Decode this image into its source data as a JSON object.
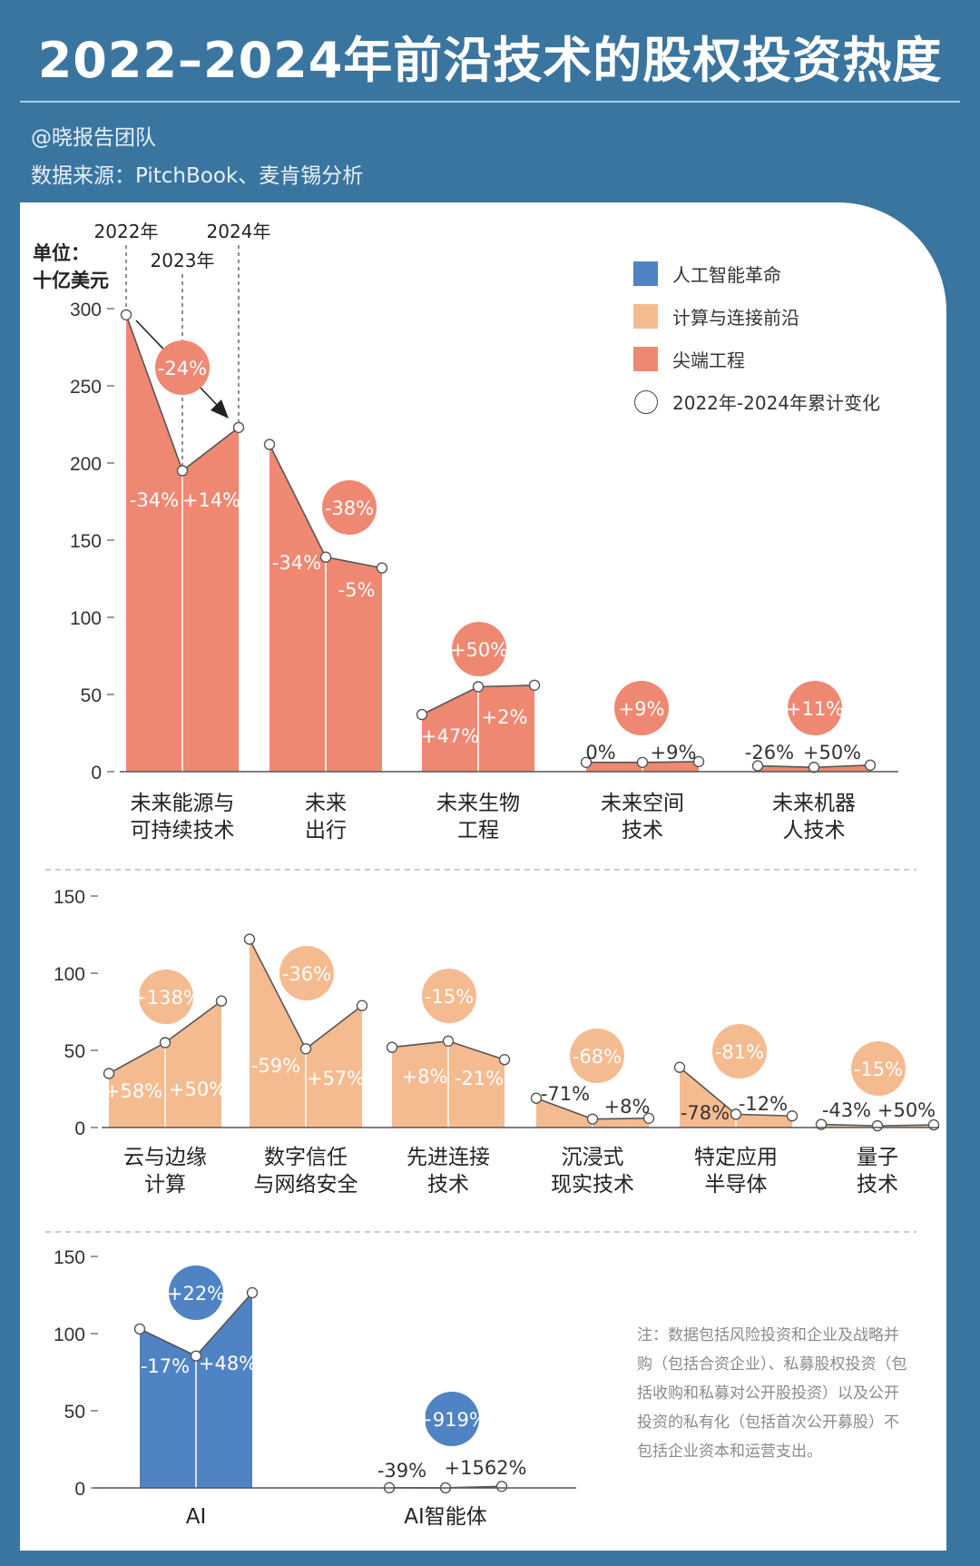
{
  "header": {
    "title": "2022–2024年前沿技术的股权投资热度",
    "author": "@晓报告团队",
    "source": "数据来源：PitchBook、麦肯锡分析"
  },
  "legend": {
    "items": [
      {
        "label": "人工智能革命",
        "color": "#4f83c4"
      },
      {
        "label": "计算与连接前沿",
        "color": "#f5bb90"
      },
      {
        "label": "尖端工程",
        "color": "#ef8872"
      }
    ],
    "marker_label": "2022年-2024年累计变化"
  },
  "note": "注：数据包括风险投资和企业及战略并购（包括合资企业）、私募股权投资（包括收购和私募对公开股投资）以及公开投资的私有化（包括首次公开募股）不包括企业资本和运营支出。",
  "colors": {
    "background": "#3a75a0",
    "line": "#555555"
  },
  "chart_data": [
    {
      "type": "area",
      "unit_label": [
        "单位：",
        "十亿美元"
      ],
      "years": [
        "2022年",
        "2023年",
        "2024年"
      ],
      "ylim": [
        0,
        300
      ],
      "yticks": [
        "0",
        "50",
        "100",
        "150",
        "200",
        "250",
        "300"
      ],
      "color": "#ef8872",
      "series_group": "尖端工程",
      "groups": [
        {
          "label": [
            "未来能源与",
            "可持续技术"
          ],
          "values": [
            296,
            195,
            223
          ],
          "changes": [
            "-34%",
            "+14%"
          ],
          "cumulative": "-24%"
        },
        {
          "label": [
            "未来",
            "出行"
          ],
          "values": [
            212,
            139,
            132
          ],
          "changes": [
            "-34%",
            "-5%"
          ],
          "cumulative": "-38%"
        },
        {
          "label": [
            "未来生物",
            "工程"
          ],
          "values": [
            37,
            55,
            56
          ],
          "changes": [
            "+47%",
            "+2%"
          ],
          "cumulative": "+50%"
        },
        {
          "label": [
            "未来空间",
            "技术"
          ],
          "values": [
            6,
            6,
            6.5
          ],
          "changes": [
            "0%",
            "+9%"
          ],
          "cumulative": "+9%"
        },
        {
          "label": [
            "未来机器",
            "人技术"
          ],
          "values": [
            3.8,
            2.8,
            4.2
          ],
          "changes": [
            "-26%",
            "+50%"
          ],
          "cumulative": "+11%"
        }
      ]
    },
    {
      "type": "area",
      "ylim": [
        0,
        150
      ],
      "yticks": [
        "0",
        "50",
        "100",
        "150"
      ],
      "color": "#f5bb90",
      "series_group": "计算与连接前沿",
      "groups": [
        {
          "label": [
            "云与边缘",
            "计算"
          ],
          "values": [
            35,
            55,
            82
          ],
          "changes": [
            "+58%",
            "+50%"
          ],
          "cumulative": "+138%"
        },
        {
          "label": [
            "数字信任",
            "与网络安全"
          ],
          "values": [
            122,
            51,
            79
          ],
          "changes": [
            "-59%",
            "+57%"
          ],
          "cumulative": "-36%"
        },
        {
          "label": [
            "先进连接",
            "技术"
          ],
          "values": [
            52,
            56,
            44
          ],
          "changes": [
            "+8%",
            "-21%"
          ],
          "cumulative": "-15%"
        },
        {
          "label": [
            "沉浸式",
            "现实技术"
          ],
          "values": [
            19,
            5.5,
            6
          ],
          "changes": [
            "-71%",
            "+8%"
          ],
          "cumulative": "-68%"
        },
        {
          "label": [
            "特定应用",
            "半导体"
          ],
          "values": [
            39,
            8.6,
            7.5
          ],
          "changes": [
            "-78%",
            "-12%"
          ],
          "cumulative": "-81%"
        },
        {
          "label": [
            "量子",
            "技术"
          ],
          "values": [
            2,
            1.1,
            1.7
          ],
          "changes": [
            "-43%",
            "+50%"
          ],
          "cumulative": "-15%"
        }
      ]
    },
    {
      "type": "area",
      "ylim": [
        0,
        150
      ],
      "yticks": [
        "0",
        "50",
        "100",
        "150"
      ],
      "color": "#4f83c4",
      "series_group": "人工智能革命",
      "groups": [
        {
          "label": [
            "AI"
          ],
          "values": [
            103,
            85.5,
            126.5
          ],
          "changes": [
            "-17%",
            "+48%"
          ],
          "cumulative": "+22%"
        },
        {
          "label": [
            "AI智能体"
          ],
          "values": [
            0.1,
            0.061,
            1.0
          ],
          "changes": [
            "-39%",
            "+1562%"
          ],
          "cumulative": "+919%"
        }
      ]
    }
  ]
}
